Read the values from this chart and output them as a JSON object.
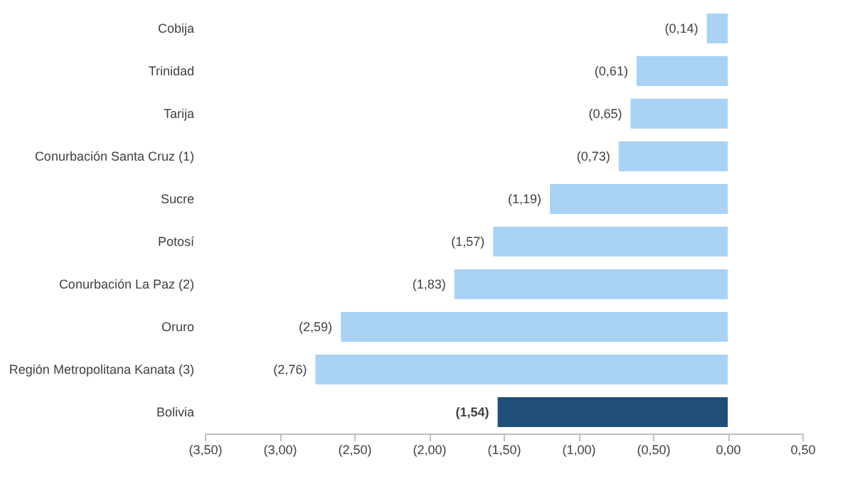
{
  "chart_data": {
    "type": "bar",
    "orientation": "horizontal",
    "categories": [
      "Cobija",
      "Trinidad",
      "Tarija",
      "Conurbación Santa Cruz (1)",
      "Sucre",
      "Potosí",
      "Conurbación La Paz (2)",
      "Oruro",
      "Región Metropolitana Kanata (3)",
      "Bolivia"
    ],
    "values": [
      -0.14,
      -0.61,
      -0.65,
      -0.73,
      -1.19,
      -1.57,
      -1.83,
      -2.59,
      -2.76,
      -1.54
    ],
    "value_labels": [
      "(0,14)",
      "(0,61)",
      "(0,65)",
      "(0,73)",
      "(1,19)",
      "(1,57)",
      "(1,83)",
      "(2,59)",
      "(2,76)",
      "(1,54)"
    ],
    "colors": [
      "#a9d2f5",
      "#a9d2f5",
      "#a9d2f5",
      "#a9d2f5",
      "#a9d2f5",
      "#a9d2f5",
      "#a9d2f5",
      "#a9d2f5",
      "#a9d2f5",
      "#1f4e79"
    ],
    "xlim": [
      -3.5,
      0.5
    ],
    "xticks": [
      {
        "value": -3.5,
        "label": "(3,50)"
      },
      {
        "value": -3.0,
        "label": "(3,00)"
      },
      {
        "value": -2.5,
        "label": "(2,50)"
      },
      {
        "value": -2.0,
        "label": "(2,00)"
      },
      {
        "value": -1.5,
        "label": "(1,50)"
      },
      {
        "value": -1.0,
        "label": "(1,00)"
      },
      {
        "value": -0.5,
        "label": "(0,50)"
      },
      {
        "value": 0,
        "label": "0,00"
      },
      {
        "value": 0.5,
        "label": "0,50"
      }
    ],
    "grid": false,
    "legend": false
  }
}
